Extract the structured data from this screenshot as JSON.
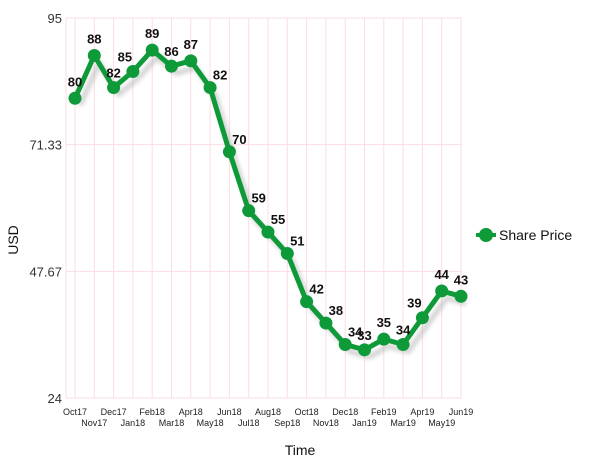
{
  "chart_data": {
    "type": "line",
    "xlabel": "Time",
    "ylabel": "USD",
    "ylim": [
      24,
      95
    ],
    "yticks": [
      "95",
      "71.33",
      "47.67",
      "24"
    ],
    "grid": true,
    "legend_position": "right",
    "categories": [
      "Oct17",
      "Nov17",
      "Dec17",
      "Jan18",
      "Feb18",
      "Mar18",
      "Apr18",
      "May18",
      "Jun18",
      "Jul18",
      "Aug18",
      "Sep18",
      "Oct18",
      "Nov18",
      "Dec18",
      "Jan19",
      "Feb19",
      "Mar19",
      "Apr19",
      "May19",
      "Jun19"
    ],
    "series": [
      {
        "name": "Share Price",
        "color": "#0f9a3a",
        "values": [
          80,
          88,
          82,
          85,
          89,
          86,
          87,
          82,
          70,
          59,
          55,
          51,
          42,
          38,
          34,
          33,
          35,
          34,
          39,
          44,
          43
        ]
      }
    ]
  }
}
